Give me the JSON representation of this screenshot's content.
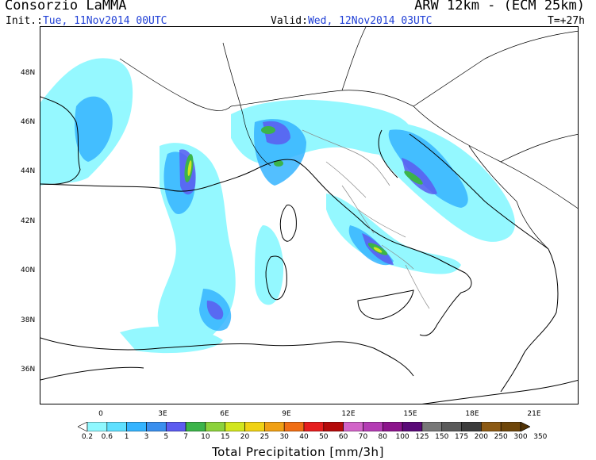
{
  "header": {
    "organization": "Consorzio LaMMA",
    "model": "ARW 12km - (ECM 25km)",
    "init_label": "Init.:",
    "init_value": "Tue, 11Nov2014 00UTC",
    "valid_label": "Valid:",
    "valid_value": "Wed, 12Nov2014 03UTC",
    "forecast_step": "T=+27h"
  },
  "map": {
    "lat_labels": [
      "48N",
      "46N",
      "44N",
      "42N",
      "40N",
      "38N",
      "36N"
    ],
    "lon_labels": [
      "0",
      "3E",
      "6E",
      "9E",
      "12E",
      "15E",
      "18E",
      "21E"
    ]
  },
  "colorbar": {
    "title": "Total Precipitation [mm/3h]",
    "levels": [
      "0.2",
      "0.6",
      "1",
      "3",
      "5",
      "7",
      "10",
      "15",
      "20",
      "25",
      "30",
      "40",
      "50",
      "60",
      "70",
      "80",
      "100",
      "125",
      "150",
      "175",
      "200",
      "250",
      "300",
      "350"
    ],
    "colors": [
      "#ffffff",
      "#8ff8ff",
      "#5fe0ff",
      "#35b4ff",
      "#3a8fee",
      "#5c5cf0",
      "#3cb44a",
      "#8cd23c",
      "#d2e61e",
      "#f0d214",
      "#f0a014",
      "#f06e14",
      "#e61e1e",
      "#b40a0a",
      "#d264c8",
      "#b43cb4",
      "#8c148c",
      "#5a0a78",
      "#787878",
      "#5a5a5a",
      "#3c3c3c",
      "#8c5a14",
      "#6e460a",
      "#503205"
    ]
  }
}
